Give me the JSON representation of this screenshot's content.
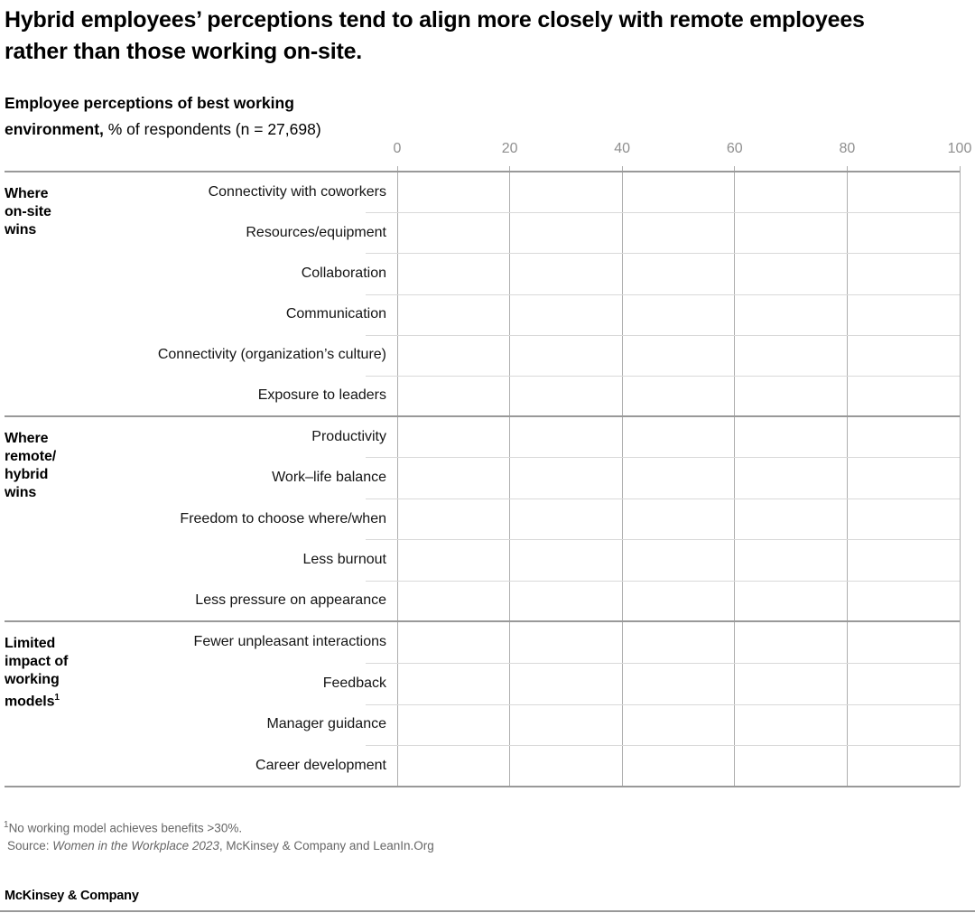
{
  "title": "Hybrid employees’ perceptions tend to align more closely with remote employees rather than those working on-site.",
  "subtitle": {
    "bold_line1": "Employee perceptions of best working",
    "bold_line2": "environment,",
    "regular": " % of respondents (n = 27,698)"
  },
  "chart_data": {
    "type": "bar",
    "title": "Employee perceptions of best working environment",
    "units": "% of respondents (n = 27,698)",
    "xlim": [
      0,
      100
    ],
    "x_ticks": [
      0,
      20,
      40,
      60,
      80,
      100
    ],
    "grid": true,
    "legend": "none",
    "groups": [
      {
        "label_lines": [
          "Where",
          "on-site",
          "wins"
        ],
        "categories": [
          "Connectivity with coworkers",
          "Resources/equipment",
          "Collaboration",
          "Communication",
          "Connectivity (organization’s culture)",
          "Exposure to leaders"
        ]
      },
      {
        "label_lines": [
          "Where",
          "remote/",
          "hybrid",
          "wins"
        ],
        "categories": [
          "Productivity",
          "Work–life balance",
          "Freedom to choose where/when",
          "Less burnout",
          "Less pressure on appearance"
        ]
      },
      {
        "label_lines": [
          "Limited",
          "impact of",
          "working",
          "models"
        ],
        "label_sup": "1",
        "categories": [
          "Fewer unpleasant interactions",
          "Feedback",
          "Manager guidance",
          "Career development"
        ]
      }
    ],
    "series": []
  },
  "footnote": {
    "marker": "1",
    "text": "No working model achieves benefits >30%."
  },
  "source": {
    "prefix": "Source: ",
    "italic": "Women in the Workplace 2023",
    "suffix": ", McKinsey & Company and LeanIn.Org"
  },
  "logo": "McKinsey & Company",
  "colors": {
    "text": "#000000",
    "axis_label": "#8f8f8f",
    "rule_dark": "#999999",
    "gridline": "#aeaeae",
    "row_separator": "#d9d9d9",
    "footnote": "#666666",
    "background": "#ffffff"
  }
}
